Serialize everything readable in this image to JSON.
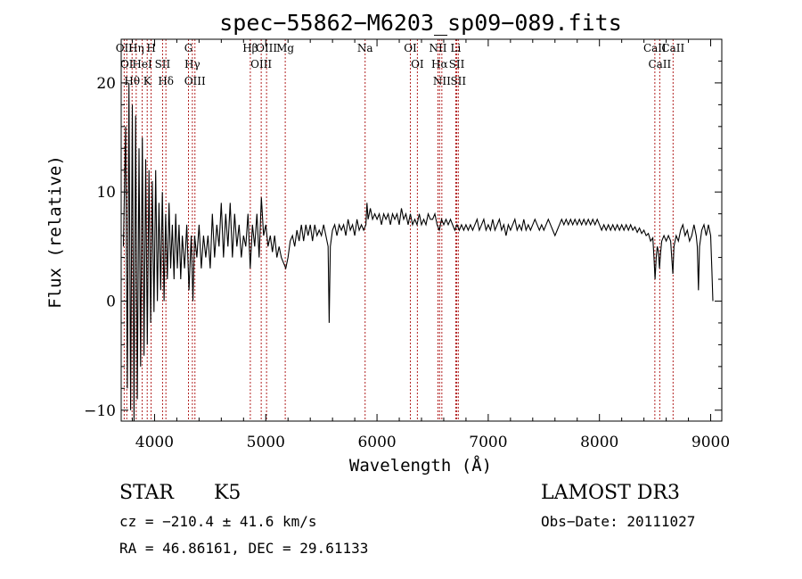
{
  "chart_data": {
    "type": "line",
    "title": "spec−55862−M6203_sp09−089.fits",
    "xlabel": "Wavelength (Å)",
    "ylabel": "Flux (relative)",
    "xlim": [
      3700,
      9100
    ],
    "ylim": [
      -11,
      24
    ],
    "xticks": [
      {
        "value": 4000,
        "label": "4000"
      },
      {
        "value": 5000,
        "label": "5000"
      },
      {
        "value": 6000,
        "label": "6000"
      },
      {
        "value": 7000,
        "label": "7000"
      },
      {
        "value": 8000,
        "label": "8000"
      },
      {
        "value": 9000,
        "label": "9000"
      }
    ],
    "yticks": [
      {
        "value": -10,
        "label": "−10"
      },
      {
        "value": 0,
        "label": "0"
      },
      {
        "value": 10,
        "label": "10"
      },
      {
        "value": 20,
        "label": "20"
      }
    ],
    "series": [
      {
        "name": "spectrum",
        "points": [
          [
            3720,
            5
          ],
          [
            3740,
            16
          ],
          [
            3755,
            -8
          ],
          [
            3770,
            20
          ],
          [
            3785,
            -10
          ],
          [
            3800,
            18
          ],
          [
            3815,
            -11
          ],
          [
            3830,
            17
          ],
          [
            3845,
            -9
          ],
          [
            3860,
            14
          ],
          [
            3875,
            -6
          ],
          [
            3890,
            15
          ],
          [
            3905,
            -5
          ],
          [
            3920,
            13
          ],
          [
            3935,
            -4
          ],
          [
            3950,
            12
          ],
          [
            3965,
            -2
          ],
          [
            3980,
            11
          ],
          [
            3995,
            -1
          ],
          [
            4010,
            12
          ],
          [
            4025,
            0
          ],
          [
            4040,
            9
          ],
          [
            4055,
            1
          ],
          [
            4070,
            10
          ],
          [
            4085,
            0
          ],
          [
            4100,
            8
          ],
          [
            4115,
            2
          ],
          [
            4130,
            9
          ],
          [
            4145,
            3
          ],
          [
            4160,
            7
          ],
          [
            4175,
            2
          ],
          [
            4190,
            8
          ],
          [
            4205,
            3
          ],
          [
            4220,
            7
          ],
          [
            4235,
            2
          ],
          [
            4250,
            6
          ],
          [
            4270,
            3
          ],
          [
            4290,
            7
          ],
          [
            4310,
            1
          ],
          [
            4330,
            6
          ],
          [
            4345,
            0
          ],
          [
            4360,
            6
          ],
          [
            4380,
            4
          ],
          [
            4400,
            7
          ],
          [
            4420,
            3
          ],
          [
            4440,
            6
          ],
          [
            4460,
            4
          ],
          [
            4480,
            6
          ],
          [
            4500,
            3
          ],
          [
            4520,
            8
          ],
          [
            4540,
            4
          ],
          [
            4560,
            7
          ],
          [
            4580,
            5
          ],
          [
            4600,
            9
          ],
          [
            4620,
            4
          ],
          [
            4640,
            8
          ],
          [
            4660,
            5
          ],
          [
            4680,
            9
          ],
          [
            4700,
            4
          ],
          [
            4720,
            8
          ],
          [
            4740,
            5
          ],
          [
            4760,
            7
          ],
          [
            4780,
            4
          ],
          [
            4800,
            6
          ],
          [
            4820,
            5
          ],
          [
            4840,
            8
          ],
          [
            4860,
            3
          ],
          [
            4880,
            7
          ],
          [
            4900,
            5
          ],
          [
            4920,
            8
          ],
          [
            4940,
            4
          ],
          [
            4960,
            9.5
          ],
          [
            4980,
            6
          ],
          [
            5000,
            7
          ],
          [
            5020,
            5
          ],
          [
            5040,
            6
          ],
          [
            5060,
            4.5
          ],
          [
            5080,
            6
          ],
          [
            5100,
            4
          ],
          [
            5120,
            5
          ],
          [
            5140,
            4
          ],
          [
            5160,
            3.5
          ],
          [
            5180,
            3
          ],
          [
            5200,
            4
          ],
          [
            5220,
            5.5
          ],
          [
            5240,
            6
          ],
          [
            5260,
            5
          ],
          [
            5280,
            6.5
          ],
          [
            5300,
            5.5
          ],
          [
            5320,
            7
          ],
          [
            5340,
            5.5
          ],
          [
            5360,
            7
          ],
          [
            5380,
            6
          ],
          [
            5400,
            7
          ],
          [
            5420,
            5.5
          ],
          [
            5440,
            7
          ],
          [
            5460,
            6
          ],
          [
            5480,
            6.5
          ],
          [
            5500,
            6
          ],
          [
            5520,
            7
          ],
          [
            5540,
            6
          ],
          [
            5560,
            5
          ],
          [
            5570,
            -2
          ],
          [
            5580,
            5
          ],
          [
            5600,
            6.5
          ],
          [
            5620,
            7
          ],
          [
            5640,
            6
          ],
          [
            5660,
            7
          ],
          [
            5680,
            6.5
          ],
          [
            5700,
            7
          ],
          [
            5720,
            6
          ],
          [
            5740,
            7.5
          ],
          [
            5760,
            6.5
          ],
          [
            5780,
            7
          ],
          [
            5800,
            6
          ],
          [
            5820,
            7.5
          ],
          [
            5840,
            6.5
          ],
          [
            5860,
            7
          ],
          [
            5880,
            6.5
          ],
          [
            5900,
            7
          ],
          [
            5910,
            9
          ],
          [
            5920,
            7.5
          ],
          [
            5940,
            8.5
          ],
          [
            5960,
            7.5
          ],
          [
            5980,
            8
          ],
          [
            6000,
            7.5
          ],
          [
            6020,
            8
          ],
          [
            6040,
            7
          ],
          [
            6060,
            8
          ],
          [
            6080,
            7.5
          ],
          [
            6100,
            8
          ],
          [
            6120,
            7
          ],
          [
            6140,
            8
          ],
          [
            6160,
            7.5
          ],
          [
            6180,
            8
          ],
          [
            6200,
            7
          ],
          [
            6220,
            8.5
          ],
          [
            6240,
            7.5
          ],
          [
            6260,
            8
          ],
          [
            6280,
            7
          ],
          [
            6300,
            8
          ],
          [
            6320,
            7
          ],
          [
            6340,
            7.5
          ],
          [
            6360,
            7
          ],
          [
            6380,
            8
          ],
          [
            6400,
            7
          ],
          [
            6420,
            7.5
          ],
          [
            6440,
            7
          ],
          [
            6460,
            8
          ],
          [
            6480,
            7.5
          ],
          [
            6500,
            7.5
          ],
          [
            6520,
            8
          ],
          [
            6540,
            7
          ],
          [
            6560,
            6.5
          ],
          [
            6580,
            7.5
          ],
          [
            6600,
            7
          ],
          [
            6620,
            7.5
          ],
          [
            6640,
            7
          ],
          [
            6660,
            7.5
          ],
          [
            6680,
            7
          ],
          [
            6700,
            6.5
          ],
          [
            6720,
            7
          ],
          [
            6740,
            6.5
          ],
          [
            6760,
            7
          ],
          [
            6780,
            6.5
          ],
          [
            6800,
            7
          ],
          [
            6820,
            6.5
          ],
          [
            6840,
            7
          ],
          [
            6860,
            6.5
          ],
          [
            6880,
            7
          ],
          [
            6900,
            7.5
          ],
          [
            6920,
            6.5
          ],
          [
            6940,
            7
          ],
          [
            6960,
            7.5
          ],
          [
            6980,
            6.5
          ],
          [
            7000,
            7
          ],
          [
            7020,
            6.5
          ],
          [
            7040,
            7.5
          ],
          [
            7060,
            6.5
          ],
          [
            7080,
            7
          ],
          [
            7100,
            7.5
          ],
          [
            7120,
            6.5
          ],
          [
            7140,
            7
          ],
          [
            7160,
            6
          ],
          [
            7180,
            7
          ],
          [
            7200,
            6.5
          ],
          [
            7220,
            7
          ],
          [
            7240,
            7.5
          ],
          [
            7260,
            6.5
          ],
          [
            7280,
            7
          ],
          [
            7300,
            6.5
          ],
          [
            7320,
            7.5
          ],
          [
            7340,
            6.5
          ],
          [
            7360,
            7
          ],
          [
            7380,
            6.5
          ],
          [
            7400,
            7
          ],
          [
            7420,
            7.5
          ],
          [
            7440,
            7
          ],
          [
            7460,
            6.5
          ],
          [
            7480,
            7
          ],
          [
            7500,
            6.5
          ],
          [
            7520,
            7
          ],
          [
            7540,
            7.5
          ],
          [
            7560,
            7
          ],
          [
            7580,
            6.5
          ],
          [
            7600,
            6
          ],
          [
            7620,
            6.5
          ],
          [
            7640,
            7
          ],
          [
            7660,
            7.5
          ],
          [
            7680,
            7
          ],
          [
            7700,
            7.5
          ],
          [
            7720,
            7
          ],
          [
            7740,
            7.5
          ],
          [
            7760,
            7
          ],
          [
            7780,
            7.5
          ],
          [
            7800,
            7
          ],
          [
            7820,
            7.5
          ],
          [
            7840,
            7
          ],
          [
            7860,
            7.5
          ],
          [
            7880,
            7
          ],
          [
            7900,
            7.5
          ],
          [
            7920,
            7
          ],
          [
            7940,
            7.5
          ],
          [
            7960,
            7
          ],
          [
            7980,
            7.5
          ],
          [
            8000,
            7
          ],
          [
            8020,
            6.5
          ],
          [
            8040,
            7
          ],
          [
            8060,
            6.5
          ],
          [
            8080,
            7
          ],
          [
            8100,
            6.5
          ],
          [
            8120,
            7
          ],
          [
            8140,
            6.5
          ],
          [
            8160,
            7
          ],
          [
            8180,
            6.5
          ],
          [
            8200,
            7
          ],
          [
            8220,
            6.5
          ],
          [
            8240,
            7
          ],
          [
            8260,
            6.5
          ],
          [
            8280,
            7
          ],
          [
            8300,
            6.5
          ],
          [
            8320,
            6.8
          ],
          [
            8340,
            6.3
          ],
          [
            8360,
            6.7
          ],
          [
            8380,
            6.2
          ],
          [
            8400,
            6.5
          ],
          [
            8420,
            6
          ],
          [
            8440,
            6.2
          ],
          [
            8460,
            5.5
          ],
          [
            8480,
            5.8
          ],
          [
            8490,
            4
          ],
          [
            8500,
            2
          ],
          [
            8510,
            4
          ],
          [
            8520,
            5
          ],
          [
            8530,
            4.5
          ],
          [
            8540,
            3
          ],
          [
            8550,
            4.5
          ],
          [
            8560,
            5.5
          ],
          [
            8580,
            6
          ],
          [
            8600,
            5.5
          ],
          [
            8620,
            6
          ],
          [
            8640,
            5.5
          ],
          [
            8650,
            4
          ],
          [
            8660,
            2.5
          ],
          [
            8670,
            5
          ],
          [
            8690,
            6
          ],
          [
            8710,
            5.5
          ],
          [
            8730,
            6.5
          ],
          [
            8750,
            7
          ],
          [
            8770,
            6
          ],
          [
            8790,
            6.5
          ],
          [
            8810,
            5.5
          ],
          [
            8830,
            6
          ],
          [
            8850,
            7
          ],
          [
            8870,
            6
          ],
          [
            8880,
            5
          ],
          [
            8890,
            1
          ],
          [
            8900,
            5
          ],
          [
            8920,
            6.5
          ],
          [
            8940,
            7
          ],
          [
            8960,
            6
          ],
          [
            8980,
            7
          ],
          [
            9000,
            6
          ],
          [
            9010,
            3
          ],
          [
            9020,
            0
          ]
        ]
      }
    ],
    "lines": [
      {
        "wl": 3727,
        "label": "OII"
      },
      {
        "wl": 3750,
        "label": "OI"
      },
      {
        "wl": 3798,
        "label": "Hθ"
      },
      {
        "wl": 3835,
        "label": "Hη"
      },
      {
        "wl": 3889,
        "label": "HeI"
      },
      {
        "wl": 3934,
        "label": "K"
      },
      {
        "wl": 3969,
        "label": "H"
      },
      {
        "wl": 4072,
        "label": "SII"
      },
      {
        "wl": 4102,
        "label": "Hδ"
      },
      {
        "wl": 4305,
        "label": "G"
      },
      {
        "wl": 4340,
        "label": "Hγ"
      },
      {
        "wl": 4363,
        "label": "OIII"
      },
      {
        "wl": 4861,
        "label": "Hβ"
      },
      {
        "wl": 4959,
        "label": "OIII"
      },
      {
        "wl": 5007,
        "label": "OIII"
      },
      {
        "wl": 5175,
        "label": "Mg"
      },
      {
        "wl": 5893,
        "label": "Na"
      },
      {
        "wl": 6300,
        "label": "OI"
      },
      {
        "wl": 6363,
        "label": "OI"
      },
      {
        "wl": 6548,
        "label": "NII"
      },
      {
        "wl": 6563,
        "label": "Hα"
      },
      {
        "wl": 6583,
        "label": "NII"
      },
      {
        "wl": 6708,
        "label": "Li"
      },
      {
        "wl": 6717,
        "label": "SII"
      },
      {
        "wl": 6731,
        "label": "SII"
      },
      {
        "wl": 8498,
        "label": "CaII"
      },
      {
        "wl": 8542,
        "label": "CaII"
      },
      {
        "wl": 8662,
        "label": "CaII"
      }
    ]
  },
  "info": {
    "class_label": "STAR",
    "subclass_label": "K5",
    "survey": "LAMOST DR3",
    "cz": "cz = −210.4 ± 41.6 km/s",
    "obs_date": "Obs−Date: 20111027",
    "radec": "RA =  46.86161, DEC =  29.61133"
  },
  "colors": {
    "line_marker": "#b22222",
    "spectrum": "#000000"
  }
}
